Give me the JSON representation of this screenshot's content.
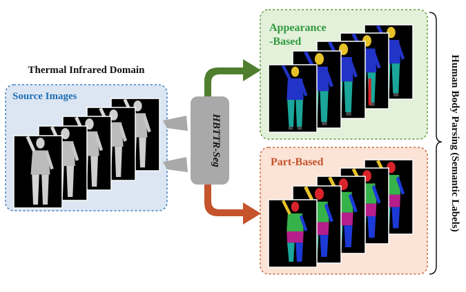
{
  "domain_title": "Thermal Infrared Domain",
  "source": {
    "label": "Source Images",
    "label_color": "#1f6fb5",
    "panel_fill": "#dce6f3",
    "panel_border": "#3f7cc4",
    "frame_count": 5
  },
  "model": {
    "label": "HBTTR-Seg",
    "fill": "#a9a9a9"
  },
  "appearance": {
    "label_line1": "Appearance",
    "label_line2": "-Based",
    "label_color": "#2f9a3c",
    "panel_fill": "#e3f0da",
    "panel_border": "#5a9e3f",
    "arrow_color": "#4f7f2e",
    "frame_count": 5
  },
  "part": {
    "label": "Part-Based",
    "label_color": "#c5532c",
    "panel_fill": "#fbe3d6",
    "panel_border": "#c96a3c",
    "arrow_color": "#c5532c",
    "frame_count": 5
  },
  "side_label": "Human Body Parsing (Semantic Labels)",
  "colors": {
    "frame_bg": "#000000",
    "frame_border": "#ffffff",
    "app_blue": "#2233c8",
    "app_teal": "#1aa69a",
    "app_yellow": "#e6c229",
    "app_red": "#d9232a",
    "part_red": "#d9232a",
    "part_green": "#36b24a",
    "part_blue": "#1c3ad6",
    "part_magenta": "#b61e8c",
    "part_yellow": "#e6c229",
    "part_teal": "#1aa69a",
    "thermal_light": "#d8d8d8",
    "thermal_mid": "#8a8a8a"
  }
}
